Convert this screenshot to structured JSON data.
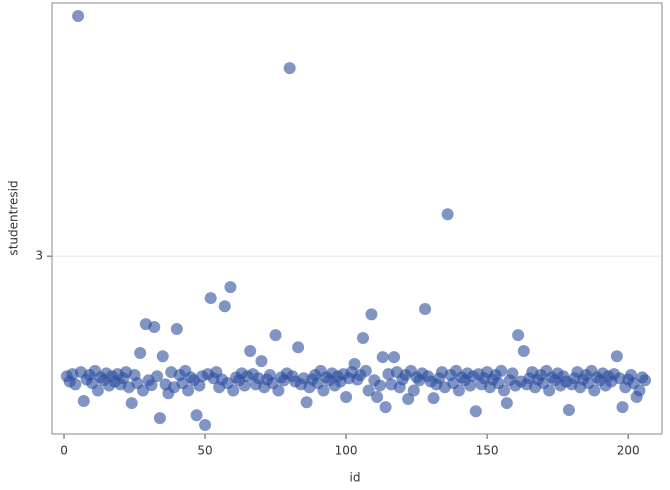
{
  "chart_data": {
    "type": "scatter",
    "xlabel": "id",
    "ylabel": "studentresid",
    "x": [
      1,
      2,
      3,
      4,
      5,
      6,
      7,
      8,
      9,
      10,
      11,
      12,
      13,
      14,
      15,
      16,
      17,
      18,
      19,
      20,
      21,
      22,
      23,
      24,
      25,
      26,
      27,
      28,
      29,
      30,
      31,
      32,
      33,
      34,
      35,
      36,
      37,
      38,
      39,
      40,
      41,
      42,
      43,
      44,
      45,
      46,
      47,
      48,
      49,
      50,
      51,
      52,
      53,
      54,
      55,
      56,
      57,
      58,
      59,
      60,
      61,
      62,
      63,
      64,
      65,
      66,
      67,
      68,
      69,
      70,
      71,
      72,
      73,
      74,
      75,
      76,
      77,
      78,
      79,
      80,
      81,
      82,
      83,
      84,
      85,
      86,
      87,
      88,
      89,
      90,
      91,
      92,
      93,
      94,
      95,
      96,
      97,
      98,
      99,
      100,
      101,
      102,
      103,
      104,
      105,
      106,
      107,
      108,
      109,
      110,
      111,
      112,
      113,
      114,
      115,
      116,
      117,
      118,
      119,
      120,
      121,
      122,
      123,
      124,
      125,
      126,
      127,
      128,
      129,
      130,
      131,
      132,
      133,
      134,
      135,
      136,
      137,
      138,
      139,
      140,
      141,
      142,
      143,
      144,
      145,
      146,
      147,
      148,
      149,
      150,
      151,
      152,
      153,
      154,
      155,
      156,
      157,
      158,
      159,
      160,
      161,
      162,
      163,
      164,
      165,
      166,
      167,
      168,
      169,
      170,
      171,
      172,
      173,
      174,
      175,
      176,
      177,
      178,
      179,
      180,
      181,
      182,
      183,
      184,
      185,
      186,
      187,
      188,
      189,
      190,
      191,
      192,
      193,
      194,
      195,
      196,
      197,
      198,
      199,
      200,
      201,
      202,
      203,
      204,
      205,
      206
    ],
    "values": [
      0.05,
      -0.08,
      0.1,
      -0.15,
      8.9,
      0.15,
      -0.56,
      -0.03,
      0.08,
      -0.12,
      0.18,
      -0.3,
      0.02,
      -0.05,
      0.12,
      -0.18,
      0.05,
      -0.08,
      0.1,
      -0.15,
      0.0,
      0.15,
      -0.22,
      -0.61,
      0.08,
      -0.12,
      0.62,
      -0.3,
      1.33,
      -0.05,
      -0.17,
      1.26,
      0.05,
      -0.98,
      0.54,
      -0.15,
      -0.37,
      0.15,
      -0.22,
      1.21,
      0.08,
      -0.12,
      0.18,
      -0.3,
      0.02,
      -0.05,
      -0.91,
      -0.18,
      0.05,
      -1.15,
      0.1,
      1.97,
      0.0,
      0.15,
      -0.22,
      -0.03,
      1.77,
      -0.12,
      2.24,
      -0.3,
      0.02,
      -0.05,
      0.12,
      -0.18,
      0.05,
      0.67,
      0.1,
      -0.15,
      0.0,
      0.42,
      -0.22,
      -0.03,
      0.08,
      -0.12,
      1.06,
      -0.3,
      0.02,
      -0.05,
      0.12,
      7.62,
      0.05,
      -0.08,
      0.76,
      -0.15,
      0.0,
      -0.59,
      -0.22,
      -0.03,
      0.08,
      -0.12,
      0.18,
      -0.3,
      0.02,
      -0.05,
      0.12,
      -0.18,
      0.05,
      -0.08,
      0.1,
      -0.46,
      0.0,
      0.15,
      0.35,
      -0.03,
      0.08,
      0.99,
      0.18,
      -0.3,
      1.57,
      -0.05,
      -0.46,
      -0.18,
      0.52,
      -0.71,
      0.1,
      -0.15,
      0.52,
      0.15,
      -0.22,
      -0.03,
      0.08,
      -0.51,
      0.18,
      -0.3,
      0.02,
      -0.05,
      0.12,
      1.7,
      0.05,
      -0.08,
      -0.49,
      -0.15,
      0.0,
      0.15,
      -0.22,
      4.03,
      0.08,
      -0.12,
      0.18,
      -0.3,
      0.02,
      -0.05,
      0.12,
      -0.18,
      0.05,
      -0.81,
      0.1,
      -0.15,
      0.0,
      0.15,
      -0.22,
      -0.03,
      0.08,
      -0.12,
      0.18,
      -0.3,
      -0.61,
      -0.05,
      0.12,
      -0.18,
      1.06,
      -0.08,
      0.67,
      -0.15,
      0.0,
      0.15,
      -0.22,
      -0.03,
      0.08,
      -0.12,
      0.18,
      -0.3,
      0.02,
      -0.05,
      0.12,
      -0.18,
      0.05,
      -0.08,
      -0.78,
      -0.15,
      0.0,
      0.15,
      -0.22,
      -0.03,
      0.08,
      -0.12,
      0.18,
      -0.3,
      0.02,
      -0.05,
      0.12,
      -0.18,
      0.05,
      -0.08,
      0.1,
      0.54,
      0.0,
      -0.71,
      -0.22,
      -0.03,
      0.08,
      -0.12,
      -0.46,
      -0.3,
      0.02,
      -0.05
    ],
    "color": "#2d4f9e",
    "xlim": [
      -4.26,
      212
    ],
    "xticks": [
      0,
      50,
      100,
      150,
      200
    ],
    "ylim": [
      -1.37,
      9.22
    ],
    "yticks": [
      3
    ],
    "grid": true
  }
}
